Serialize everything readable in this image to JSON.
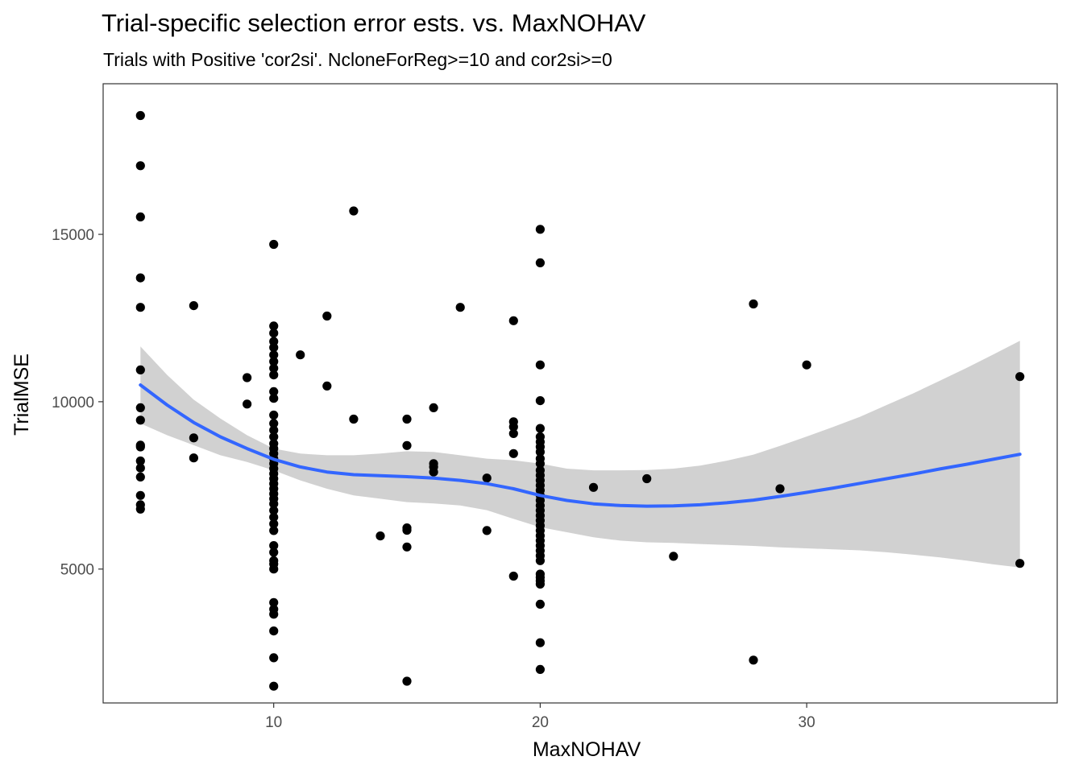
{
  "chart_data": {
    "type": "scatter",
    "title": "Trial-specific selection error ests. vs. MaxNOHAV",
    "subtitle": "Trials with Positive 'cor2si'. NcloneForReg>=10 and cor2si>=0",
    "xlabel": "MaxNOHAV",
    "ylabel": "TrialMSE",
    "xlim": [
      3.6,
      39.4
    ],
    "ylim": [
      1000,
      19500
    ],
    "xticks": [
      10,
      20,
      30
    ],
    "yticks": [
      5000,
      10000,
      15000
    ],
    "grid": false,
    "colors": {
      "points": "#000000",
      "smooth_line": "#3366ff",
      "confidence_band": "#bfbfbf",
      "panel_border": "#333333"
    },
    "points": [
      [
        5,
        18550
      ],
      [
        5,
        17050
      ],
      [
        5,
        15520
      ],
      [
        5,
        13700
      ],
      [
        5,
        12820
      ],
      [
        5,
        10950
      ],
      [
        5,
        9820
      ],
      [
        5,
        9450
      ],
      [
        5,
        8700
      ],
      [
        5,
        8650
      ],
      [
        5,
        8230
      ],
      [
        5,
        8020
      ],
      [
        5,
        7750
      ],
      [
        5,
        7200
      ],
      [
        5,
        6920
      ],
      [
        5,
        6790
      ],
      [
        7,
        12870
      ],
      [
        7,
        8920
      ],
      [
        7,
        8320
      ],
      [
        9,
        10720
      ],
      [
        9,
        9930
      ],
      [
        10,
        14700
      ],
      [
        10,
        12260
      ],
      [
        10,
        12050
      ],
      [
        10,
        11800
      ],
      [
        10,
        11620
      ],
      [
        10,
        11400
      ],
      [
        10,
        11200
      ],
      [
        10,
        11000
      ],
      [
        10,
        10800
      ],
      [
        10,
        10300
      ],
      [
        10,
        10100
      ],
      [
        10,
        9600
      ],
      [
        10,
        9350
      ],
      [
        10,
        9150
      ],
      [
        10,
        8950
      ],
      [
        10,
        8750
      ],
      [
        10,
        8600
      ],
      [
        10,
        8450
      ],
      [
        10,
        8300
      ],
      [
        10,
        8150
      ],
      [
        10,
        8000
      ],
      [
        10,
        7850
      ],
      [
        10,
        7700
      ],
      [
        10,
        7550
      ],
      [
        10,
        7400
      ],
      [
        10,
        7250
      ],
      [
        10,
        7100
      ],
      [
        10,
        6950
      ],
      [
        10,
        6750
      ],
      [
        10,
        6550
      ],
      [
        10,
        6350
      ],
      [
        10,
        6150
      ],
      [
        10,
        5700
      ],
      [
        10,
        5500
      ],
      [
        10,
        5250
      ],
      [
        10,
        5150
      ],
      [
        10,
        5000
      ],
      [
        10,
        4000
      ],
      [
        10,
        3800
      ],
      [
        10,
        3650
      ],
      [
        10,
        3150
      ],
      [
        10,
        2350
      ],
      [
        10,
        1500
      ],
      [
        11,
        11400
      ],
      [
        12,
        12560
      ],
      [
        12,
        10470
      ],
      [
        13,
        15700
      ],
      [
        13,
        9480
      ],
      [
        14,
        5990
      ],
      [
        15,
        9480
      ],
      [
        15,
        8690
      ],
      [
        15,
        6230
      ],
      [
        15,
        6160
      ],
      [
        15,
        5660
      ],
      [
        15,
        1650
      ],
      [
        16,
        9820
      ],
      [
        16,
        8150
      ],
      [
        16,
        8050
      ],
      [
        16,
        7900
      ],
      [
        17,
        12820
      ],
      [
        18,
        7720
      ],
      [
        18,
        6150
      ],
      [
        19,
        12420
      ],
      [
        19,
        9400
      ],
      [
        19,
        9250
      ],
      [
        19,
        9050
      ],
      [
        19,
        8450
      ],
      [
        19,
        4790
      ],
      [
        20,
        15150
      ],
      [
        20,
        14150
      ],
      [
        20,
        11100
      ],
      [
        20,
        10030
      ],
      [
        20,
        9200
      ],
      [
        20,
        8950
      ],
      [
        20,
        8800
      ],
      [
        20,
        8650
      ],
      [
        20,
        8500
      ],
      [
        20,
        8300
      ],
      [
        20,
        8150
      ],
      [
        20,
        7950
      ],
      [
        20,
        7800
      ],
      [
        20,
        7650
      ],
      [
        20,
        7500
      ],
      [
        20,
        7350
      ],
      [
        20,
        7200
      ],
      [
        20,
        7050
      ],
      [
        20,
        6900
      ],
      [
        20,
        6750
      ],
      [
        20,
        6600
      ],
      [
        20,
        6450
      ],
      [
        20,
        6300
      ],
      [
        20,
        6150
      ],
      [
        20,
        6000
      ],
      [
        20,
        5850
      ],
      [
        20,
        5700
      ],
      [
        20,
        5550
      ],
      [
        20,
        5400
      ],
      [
        20,
        5250
      ],
      [
        20,
        4850
      ],
      [
        20,
        4750
      ],
      [
        20,
        4650
      ],
      [
        20,
        4550
      ],
      [
        20,
        3950
      ],
      [
        20,
        2800
      ],
      [
        20,
        2000
      ],
      [
        22,
        7440
      ],
      [
        24,
        7700
      ],
      [
        25,
        5380
      ],
      [
        28,
        12920
      ],
      [
        28,
        2280
      ],
      [
        29,
        7400
      ],
      [
        30,
        11100
      ],
      [
        38,
        10750
      ],
      [
        38,
        5170
      ]
    ],
    "smooth_line": {
      "x": [
        5,
        6,
        7,
        8,
        9,
        10,
        11,
        12,
        13,
        14,
        15,
        16,
        17,
        18,
        19,
        20,
        21,
        22,
        23,
        24,
        25,
        26,
        27,
        28,
        29,
        30,
        31,
        32,
        33,
        34,
        35,
        36,
        37,
        38
      ],
      "y": [
        10500,
        9900,
        9380,
        8950,
        8600,
        8280,
        8050,
        7900,
        7820,
        7790,
        7760,
        7720,
        7650,
        7550,
        7400,
        7200,
        7050,
        6950,
        6900,
        6880,
        6890,
        6920,
        6980,
        7060,
        7170,
        7290,
        7420,
        7560,
        7700,
        7840,
        7990,
        8130,
        8280,
        8430
      ],
      "lo": [
        9350,
        9000,
        8700,
        8400,
        8200,
        7950,
        7650,
        7400,
        7200,
        7100,
        7000,
        6960,
        6900,
        6760,
        6500,
        6250,
        6100,
        5950,
        5850,
        5800,
        5780,
        5750,
        5720,
        5690,
        5650,
        5620,
        5590,
        5560,
        5500,
        5430,
        5350,
        5250,
        5140,
        5050
      ],
      "hi": [
        11650,
        10800,
        10060,
        9500,
        9000,
        8600,
        8450,
        8400,
        8400,
        8450,
        8520,
        8500,
        8400,
        8300,
        8250,
        8150,
        8000,
        7950,
        7950,
        7960,
        8000,
        8090,
        8240,
        8420,
        8680,
        8960,
        9250,
        9550,
        9900,
        10250,
        10630,
        11010,
        11410,
        11820
      ]
    }
  }
}
